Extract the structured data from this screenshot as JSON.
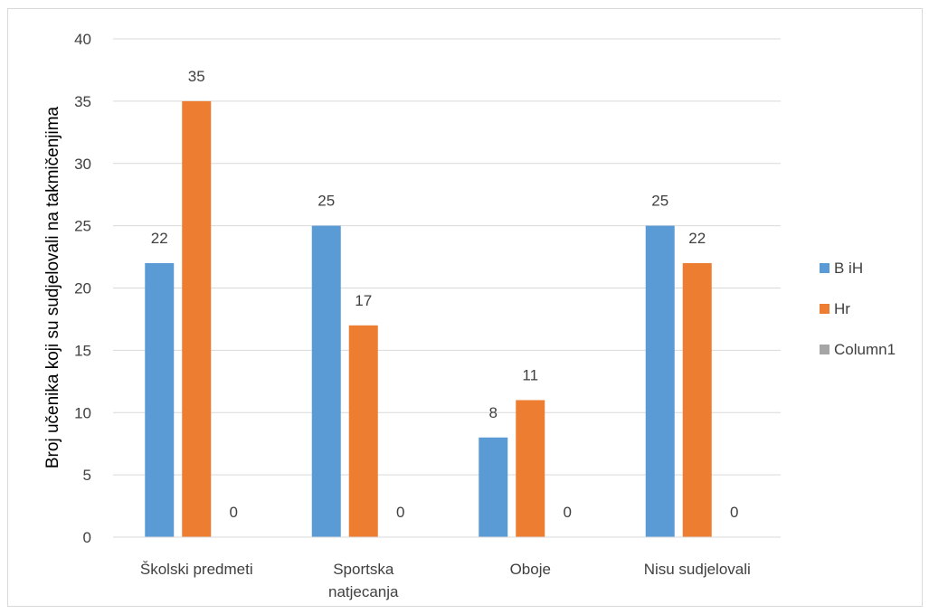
{
  "chart_data": {
    "type": "bar",
    "title": "",
    "xlabel": "",
    "ylabel": "Broj učenika koji su sudjelovali na takmičenjima",
    "categories": [
      [
        "Školski predmeti"
      ],
      [
        "Sportska",
        "natjecanja"
      ],
      [
        "Oboje"
      ],
      [
        "Nisu sudjelovali"
      ]
    ],
    "series": [
      {
        "name": "B iH",
        "color": "#5b9bd5",
        "values": [
          22,
          25,
          8,
          25
        ]
      },
      {
        "name": "Hr",
        "color": "#ed7d31",
        "values": [
          35,
          17,
          11,
          22
        ]
      },
      {
        "name": "Column1",
        "color": "#a5a5a5",
        "values": [
          0,
          0,
          0,
          0
        ]
      }
    ],
    "ylim": [
      0,
      40
    ],
    "yticks": [
      0,
      5,
      10,
      15,
      20,
      25,
      30,
      35,
      40
    ],
    "grid": true,
    "legend_position": "right",
    "gridline_color": "#d9d9d9"
  }
}
